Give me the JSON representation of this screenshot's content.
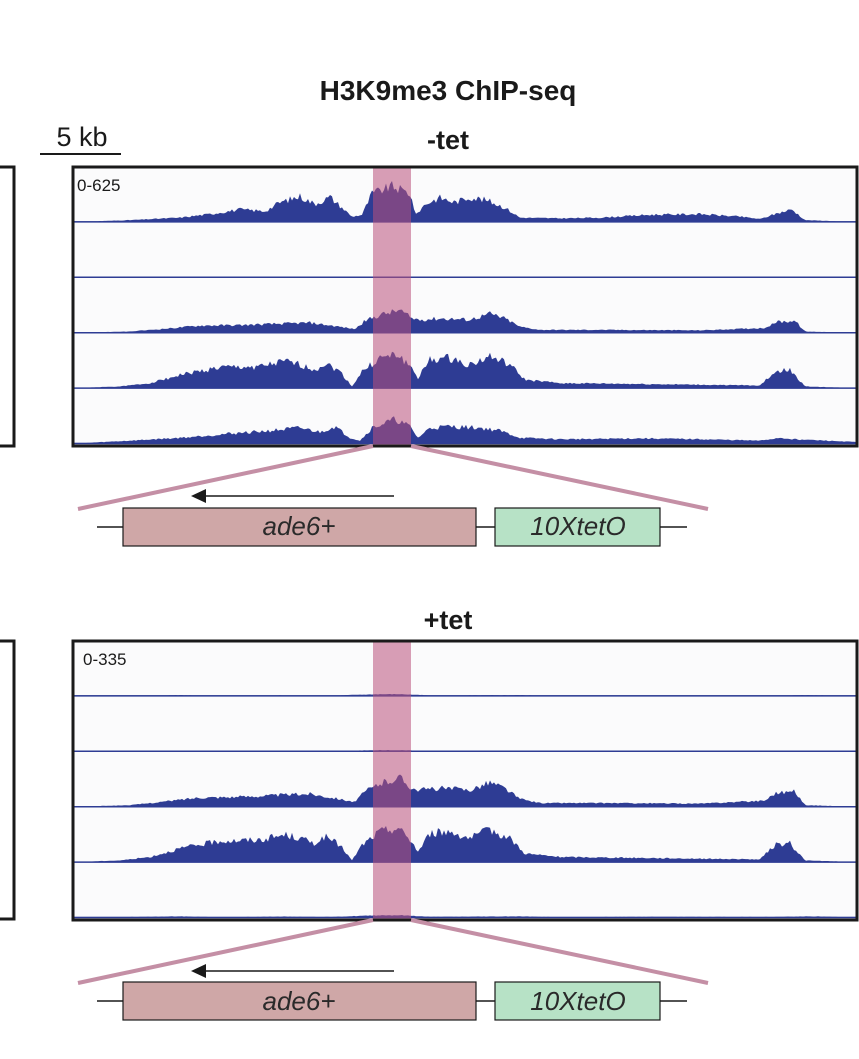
{
  "figure": {
    "title": "H3K9me3 ChIP-seq",
    "scale_bar_label": "5 kb",
    "colors": {
      "signal": "#2e3c94",
      "highlight": "#b9507a",
      "zoom_line": "#c48fa5",
      "ade6_box": "#cfa7a7",
      "tetO_box": "#b7e2c6",
      "panel_border": "#1a1a1a",
      "track_bg": "#fbfbfc"
    },
    "panels": [
      {
        "id": "minus-tet",
        "condition": "-tet",
        "data_range": "0-625",
        "track_count": 5,
        "shape_profiles": [
          "A",
          "flat",
          "B",
          "C",
          "D"
        ],
        "shape_heights": [
          0.75,
          0.03,
          0.5,
          0.7,
          0.6
        ],
        "locus": {
          "gene_label": "ade6+",
          "reporter_label": "10XtetO",
          "direction": "leftward"
        }
      },
      {
        "id": "plus-tet",
        "condition": "+tet",
        "data_range": "0-335",
        "track_count": 5,
        "shape_profiles": [
          "low",
          "low",
          "B",
          "C",
          "low"
        ],
        "shape_heights": [
          0.06,
          0.04,
          0.65,
          0.72,
          0.08
        ],
        "locus": {
          "gene_label": "ade6+",
          "reporter_label": "10XtetO",
          "direction": "leftward"
        }
      }
    ]
  }
}
